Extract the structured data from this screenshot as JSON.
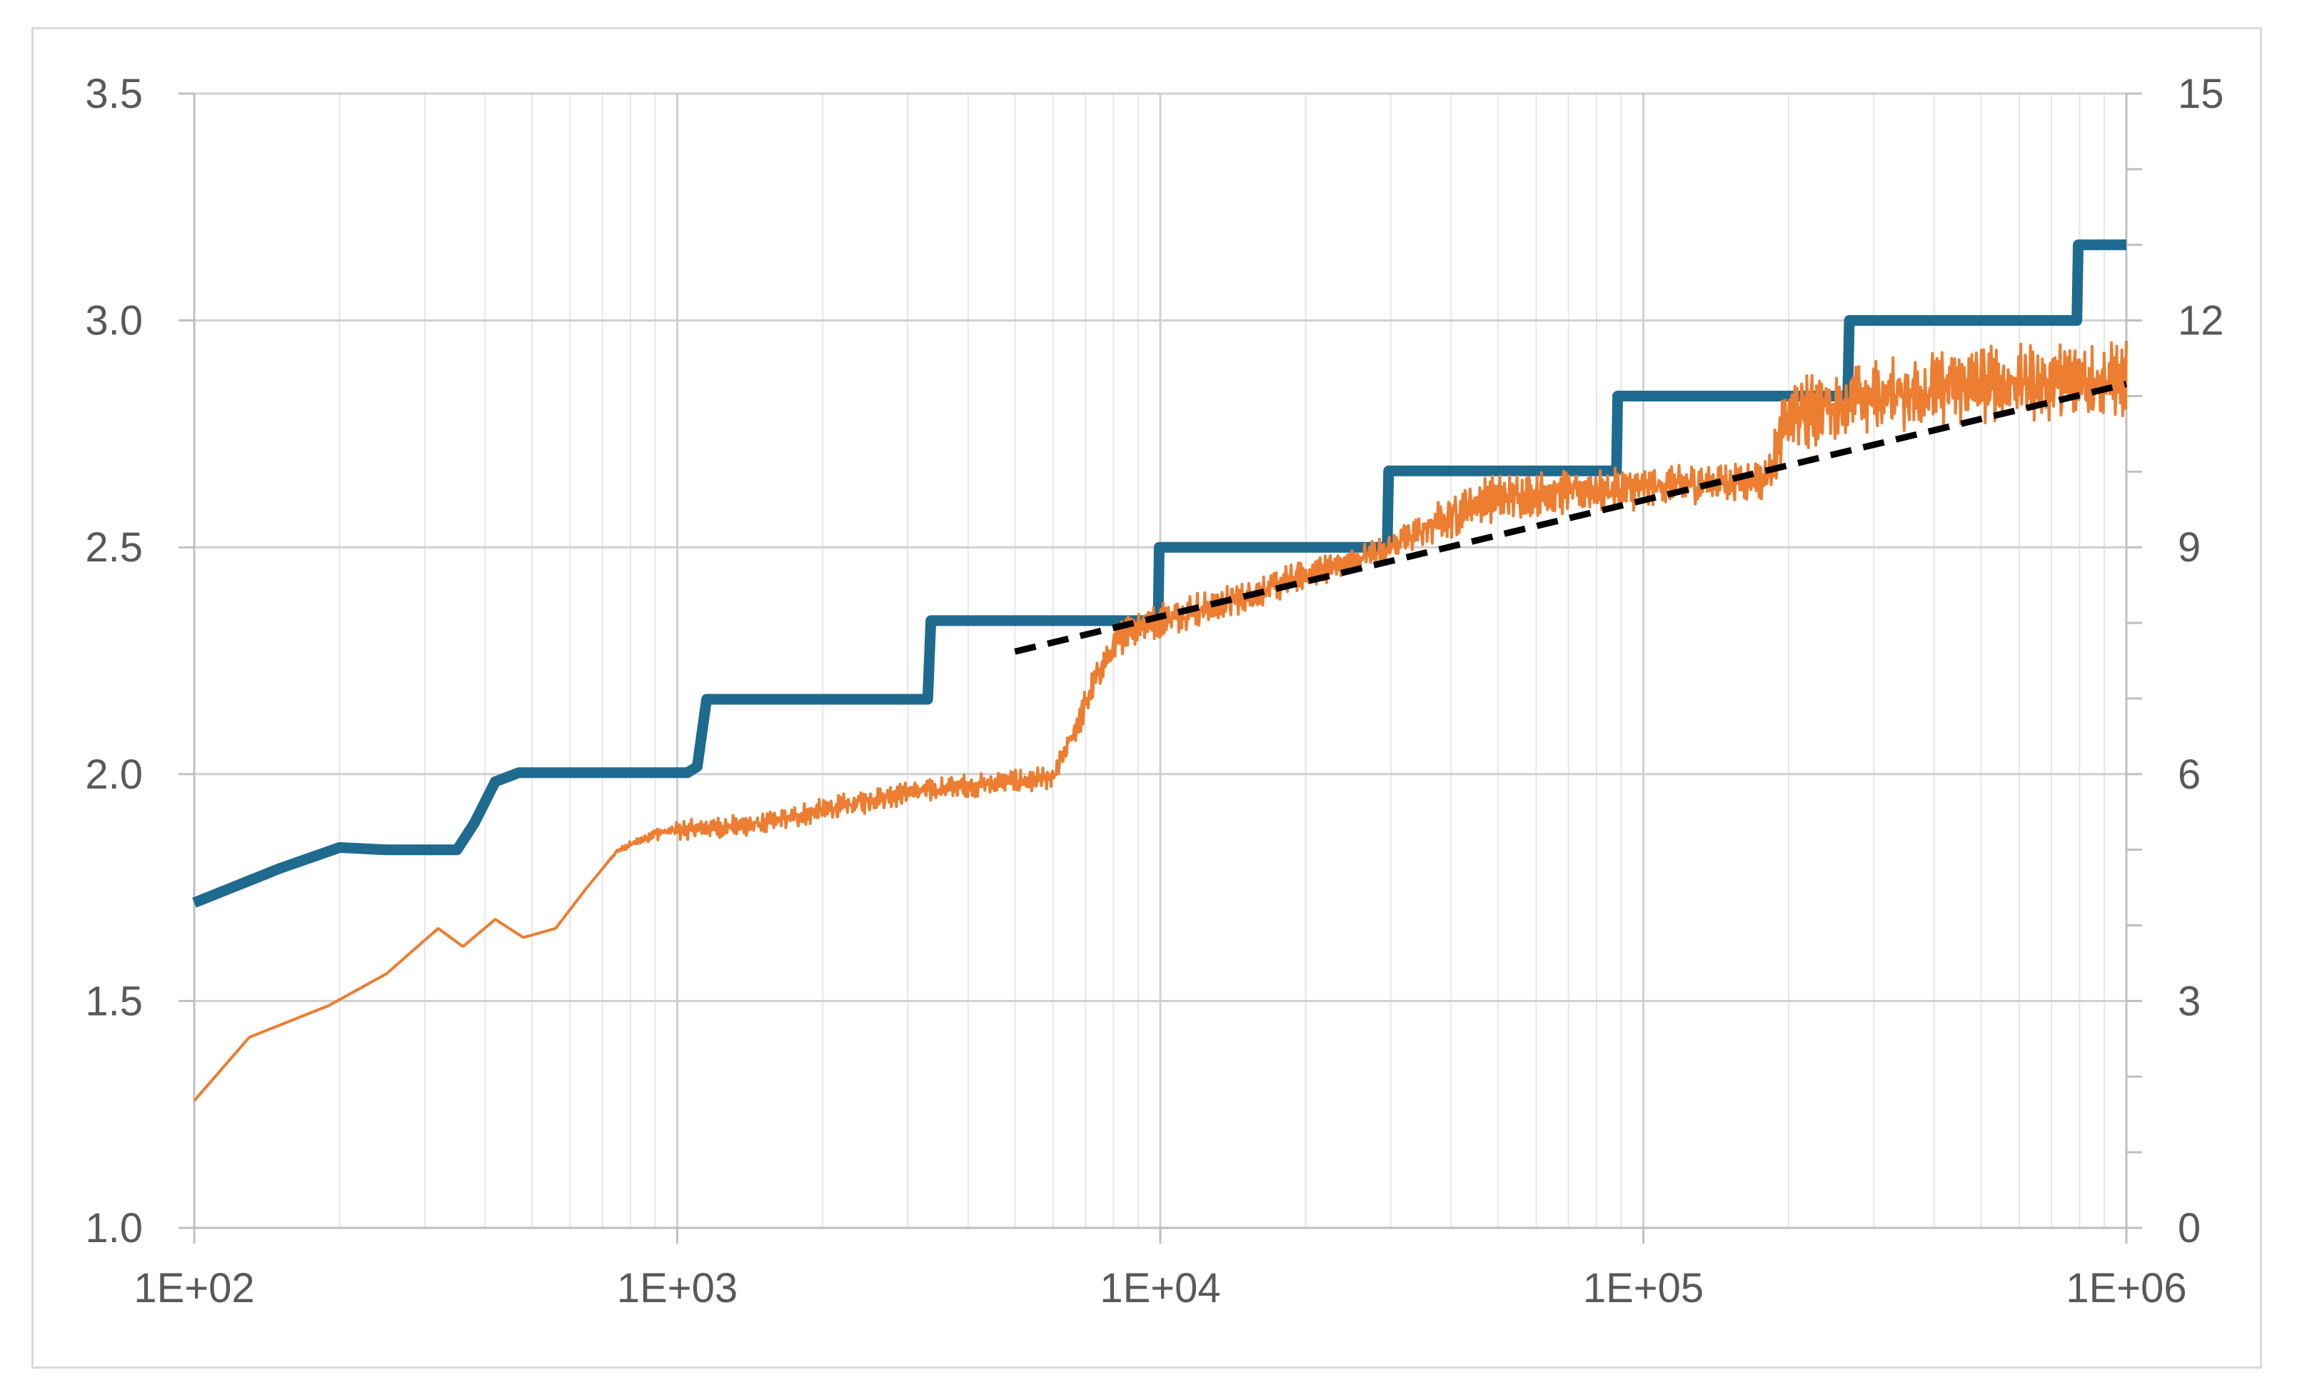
{
  "chart_data": {
    "type": "line",
    "title": "",
    "xlabel": "",
    "ylabel": "",
    "y2label": "",
    "x_scale": "log",
    "xlim": [
      100,
      1000000
    ],
    "ylim": [
      1.0,
      3.5
    ],
    "y2lim": [
      0,
      15
    ],
    "grid": true,
    "legend": "none",
    "x_ticks": [
      {
        "value": 100,
        "label": "1E+02"
      },
      {
        "value": 1000,
        "label": "1E+03"
      },
      {
        "value": 10000,
        "label": "1E+04"
      },
      {
        "value": 100000,
        "label": "1E+05"
      },
      {
        "value": 1000000,
        "label": "1E+06"
      }
    ],
    "y_ticks": [
      {
        "value": 1.0,
        "label": "1.0"
      },
      {
        "value": 1.5,
        "label": "1.5"
      },
      {
        "value": 2.0,
        "label": "2.0"
      },
      {
        "value": 2.5,
        "label": "2.5"
      },
      {
        "value": 3.0,
        "label": "3.0"
      },
      {
        "value": 3.5,
        "label": "3.5"
      }
    ],
    "y2_ticks": [
      {
        "value": 0,
        "label": "0"
      },
      {
        "value": 3,
        "label": "3"
      },
      {
        "value": 6,
        "label": "6"
      },
      {
        "value": 9,
        "label": "9"
      },
      {
        "value": 12,
        "label": "12"
      },
      {
        "value": 15,
        "label": "15"
      }
    ],
    "series": [
      {
        "axis": "right",
        "color": "#1f6a8f",
        "style": "solid-thick",
        "points": [
          [
            100,
            4.3
          ],
          [
            150,
            4.75
          ],
          [
            200,
            5.03
          ],
          [
            250,
            5.0
          ],
          [
            310,
            5.0
          ],
          [
            350,
            5.0
          ],
          [
            380,
            5.35
          ],
          [
            420,
            5.9
          ],
          [
            470,
            6.02
          ],
          [
            1050,
            6.02
          ],
          [
            1100,
            6.1
          ],
          [
            1150,
            6.99
          ],
          [
            3300,
            6.99
          ],
          [
            3350,
            8.03
          ],
          [
            9900,
            8.03
          ],
          [
            9950,
            9.0
          ],
          [
            29500,
            9.0
          ],
          [
            29700,
            10.01
          ],
          [
            88000,
            10.01
          ],
          [
            88500,
            11.0
          ],
          [
            265000,
            11.0
          ],
          [
            267000,
            12.0
          ],
          [
            790000,
            12.0
          ],
          [
            795000,
            13.0
          ],
          [
            1000000,
            13.0
          ]
        ]
      },
      {
        "axis": "left",
        "color": "#ed7d31",
        "style": "noisy-thin",
        "points": [
          [
            100,
            1.28
          ],
          [
            130,
            1.42
          ],
          [
            190,
            1.49
          ],
          [
            250,
            1.56
          ],
          [
            320,
            1.66
          ],
          [
            360,
            1.62
          ],
          [
            420,
            1.68
          ],
          [
            480,
            1.64
          ],
          [
            560,
            1.66
          ],
          [
            650,
            1.75
          ],
          [
            750,
            1.83
          ],
          [
            900,
            1.87
          ],
          [
            1100,
            1.88
          ],
          [
            1500,
            1.89
          ],
          [
            2000,
            1.92
          ],
          [
            3000,
            1.96
          ],
          [
            4500,
            1.98
          ],
          [
            6000,
            1.99
          ],
          [
            6800,
            2.12
          ],
          [
            7500,
            2.23
          ],
          [
            8500,
            2.32
          ],
          [
            10000,
            2.34
          ],
          [
            15000,
            2.39
          ],
          [
            20000,
            2.44
          ],
          [
            25000,
            2.47
          ],
          [
            30000,
            2.5
          ],
          [
            37000,
            2.55
          ],
          [
            45000,
            2.6
          ],
          [
            60000,
            2.62
          ],
          [
            100000,
            2.63
          ],
          [
            180000,
            2.65
          ],
          [
            200000,
            2.79
          ],
          [
            300000,
            2.83
          ],
          [
            500000,
            2.86
          ],
          [
            1000000,
            2.87
          ]
        ],
        "noise_amplitude": [
          [
            100,
            0.0
          ],
          [
            700,
            0.0
          ],
          [
            1000,
            0.02
          ],
          [
            2000,
            0.025
          ],
          [
            6000,
            0.025
          ],
          [
            8000,
            0.04
          ],
          [
            30000,
            0.03
          ],
          [
            40000,
            0.05
          ],
          [
            180000,
            0.04
          ],
          [
            200000,
            0.08
          ],
          [
            1000000,
            0.08
          ]
        ]
      },
      {
        "axis": "left",
        "color": "#000000",
        "style": "dashed",
        "points": [
          [
            5000,
            2.27
          ],
          [
            1000000,
            2.86
          ]
        ]
      }
    ]
  }
}
